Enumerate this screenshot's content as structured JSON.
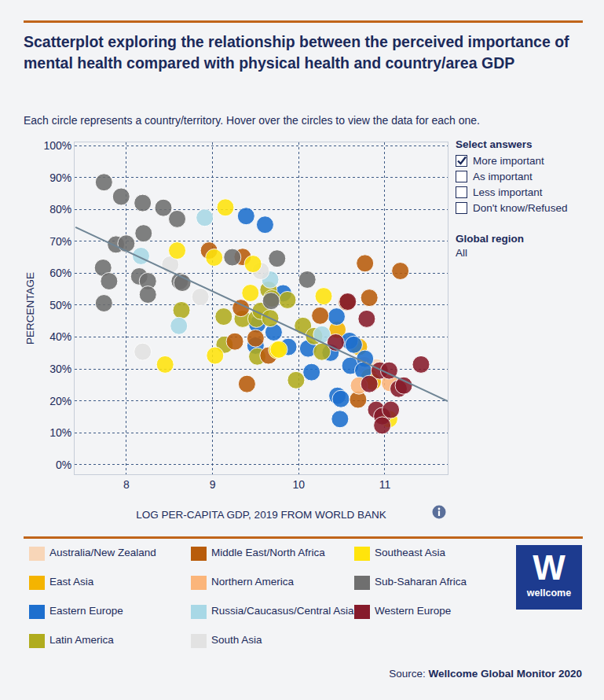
{
  "chart_data": {
    "type": "scatter",
    "title": "Scatterplot exploring the relationship between the perceived importance of mental health compared with physical health and country/area GDP",
    "subtitle": "Each circle represents a country/territory. Hover over the circles to view the data for each one.",
    "x_label": "LOG PER-CAPITA GDP, 2019 FROM WORLD BANK",
    "y_label": "PERCENTAGE",
    "xlim": [
      7.4,
      11.73
    ],
    "ylim": [
      -3,
      101
    ],
    "xticks": [
      8,
      9,
      10,
      11
    ],
    "yticks": [
      {
        "value": 0,
        "label": "0%"
      },
      {
        "value": 10,
        "label": "10%"
      },
      {
        "value": 20,
        "label": "20%"
      },
      {
        "value": 30,
        "label": "30%"
      },
      {
        "value": 40,
        "label": "40%"
      },
      {
        "value": 50,
        "label": "50%"
      },
      {
        "value": 60,
        "label": "60%"
      },
      {
        "value": 70,
        "label": "70%"
      },
      {
        "value": 80,
        "label": "80%"
      },
      {
        "value": 90,
        "label": "90%"
      },
      {
        "value": 100,
        "label": "100%"
      }
    ],
    "grid": true,
    "marker": "circle",
    "series": [
      {
        "name": "Australia/New Zealand",
        "color": "#f8d6b8",
        "x": [
          10.76,
          10.9
        ],
        "values": [
          31.2,
          30.5
        ]
      },
      {
        "name": "East Asia",
        "color": "#f4b400",
        "x": [
          10.45,
          10.7,
          10.82,
          10.86
        ],
        "values": [
          42.3,
          36.9,
          27.5,
          26.0
        ]
      },
      {
        "name": "Eastern Europe",
        "color": "#1d6fce",
        "x": [
          9.39,
          9.61,
          9.82,
          9.52,
          9.71,
          9.5,
          9.88,
          10.11,
          10.15,
          10.44,
          10.37,
          10.59,
          10.6,
          10.45,
          10.49,
          10.48,
          10.64,
          10.77,
          10.75
        ],
        "values": [
          77.9,
          75.2,
          53.7,
          44.0,
          41.5,
          37.3,
          36.9,
          36.4,
          29.0,
          46.4,
          35.1,
          38.8,
          31.0,
          21.6,
          20.6,
          14.3,
          37.6,
          33.2,
          29.5
        ]
      },
      {
        "name": "Latin America",
        "color": "#b0ac1e",
        "x": [
          8.64,
          9.13,
          9.14,
          9.35,
          9.51,
          9.56,
          9.65,
          9.69,
          9.67,
          9.87,
          10.05,
          9.97,
          9.52,
          10.18,
          10.27
        ],
        "values": [
          48.4,
          46.4,
          37.6,
          45.7,
          45.7,
          48.2,
          54.8,
          52.1,
          45.9,
          51.6,
          43.5,
          26.5,
          33.9,
          40.3,
          35.4
        ]
      },
      {
        "name": "Middle East/North Africa",
        "color": "#b85c0b",
        "x": [
          8.96,
          9.35,
          9.33,
          9.26,
          9.4,
          9.5,
          9.65,
          10.25,
          10.56,
          10.77,
          10.82,
          11.18,
          10.69
        ],
        "values": [
          67.1,
          65.1,
          49.1,
          38.6,
          25.3,
          39.6,
          34.2,
          46.7,
          50.9,
          63.1,
          52.3,
          60.7,
          20.4
        ]
      },
      {
        "name": "Northern America",
        "color": "#fbb57a",
        "x": [
          10.7,
          11.06
        ],
        "values": [
          24.8,
          25.6
        ]
      },
      {
        "name": "Russia/Caucasus/Central Asia",
        "color": "#a8d8e6",
        "x": [
          8.91,
          8.17,
          8.61,
          9.67,
          10.27
        ],
        "values": [
          77.4,
          65.4,
          43.5,
          58.0,
          40.8
        ]
      },
      {
        "name": "South Asia",
        "color": "#e2e2e2",
        "x": [
          8.51,
          8.19,
          8.86,
          9.56
        ],
        "values": [
          62.7,
          35.4,
          52.6,
          60.7
        ]
      },
      {
        "name": "Southeast Asia",
        "color": "#ffe40c",
        "x": [
          9.15,
          8.59,
          9.02,
          8.45,
          9.03,
          9.47,
          9.44,
          9.75,
          10.29,
          11.05,
          9.77
        ],
        "values": [
          80.6,
          67.1,
          64.9,
          31.4,
          34.2,
          62.9,
          53.8,
          35.9,
          52.8,
          14.3,
          36.1
        ]
      },
      {
        "name": "Sub-Saharan Africa",
        "color": "#6f6f6f",
        "x": [
          7.74,
          7.94,
          8.19,
          8.43,
          8.59,
          7.88,
          8.0,
          8.2,
          7.73,
          7.8,
          7.74,
          8.15,
          8.25,
          8.25,
          8.62,
          8.65,
          9.23,
          9.75,
          9.68,
          10.1
        ],
        "values": [
          88.5,
          84.0,
          82.0,
          80.5,
          77.0,
          69.0,
          69.3,
          72.5,
          61.7,
          57.5,
          50.6,
          59.0,
          57.5,
          53.3,
          57.5,
          57.0,
          65.0,
          64.6,
          51.3,
          58.0
        ]
      },
      {
        "name": "Western Europe",
        "color": "#861b2b",
        "x": [
          10.57,
          10.43,
          10.79,
          10.82,
          10.94,
          11.05,
          10.9,
          10.97,
          11.07,
          11.16,
          11.22,
          11.42,
          10.97
        ],
        "values": [
          51.1,
          38.3,
          45.7,
          25.3,
          29.5,
          29.5,
          17.2,
          15.2,
          17.2,
          23.8,
          24.8,
          31.4,
          12.3
        ]
      }
    ],
    "trend_line": {
      "type": "line",
      "color": "#6f8595",
      "x": [
        7.41,
        11.73
      ],
      "values": [
        74.4,
        19.9
      ]
    }
  },
  "controls": {
    "select_answers": {
      "title": "Select answers",
      "options": [
        {
          "label": "More important",
          "checked": true
        },
        {
          "label": "As important",
          "checked": false
        },
        {
          "label": "Less important",
          "checked": false
        },
        {
          "label": "Don't know/Refused",
          "checked": false
        }
      ]
    },
    "global_region": {
      "title": "Global region",
      "value": "All"
    }
  },
  "logo": {
    "letter": "W",
    "text": "wellcome"
  },
  "source": {
    "label": "Source:",
    "text": "Wellcome Global Monitor 2020"
  }
}
